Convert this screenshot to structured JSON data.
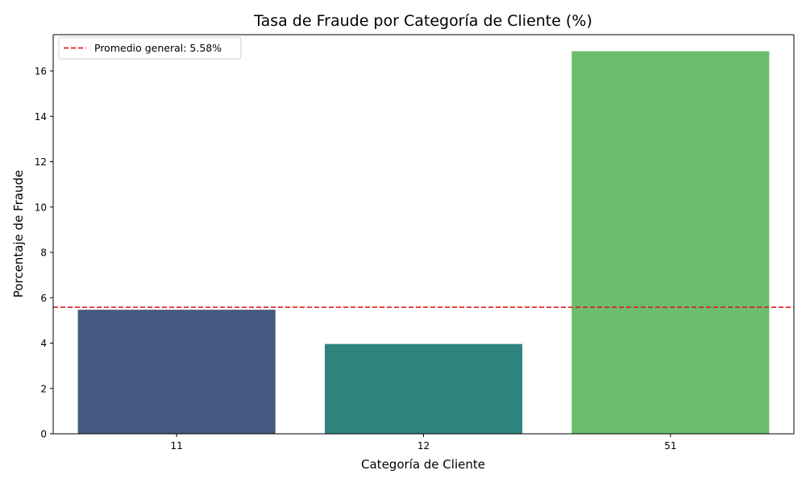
{
  "chart_data": {
    "type": "bar",
    "title": "Tasa de Fraude por Categoría de Cliente (%)",
    "xlabel": "Categoría de Cliente",
    "ylabel": "Porcentaje de Fraude",
    "categories": [
      "11",
      "12",
      "51"
    ],
    "values": [
      5.47,
      3.96,
      16.87
    ],
    "bar_colors": [
      "#46587f",
      "#2e857d",
      "#6abd6d"
    ],
    "ylim": [
      0,
      17.6
    ],
    "yticks": [
      0,
      2,
      4,
      6,
      8,
      10,
      12,
      14,
      16
    ],
    "grid": false,
    "reference_line": {
      "value": 5.58,
      "label": "Promedio general: 5.58%",
      "color": "#e31a1c",
      "style": "dashed"
    },
    "legend": {
      "position": "top-left",
      "entries": [
        "Promedio general: 5.58%"
      ]
    }
  }
}
